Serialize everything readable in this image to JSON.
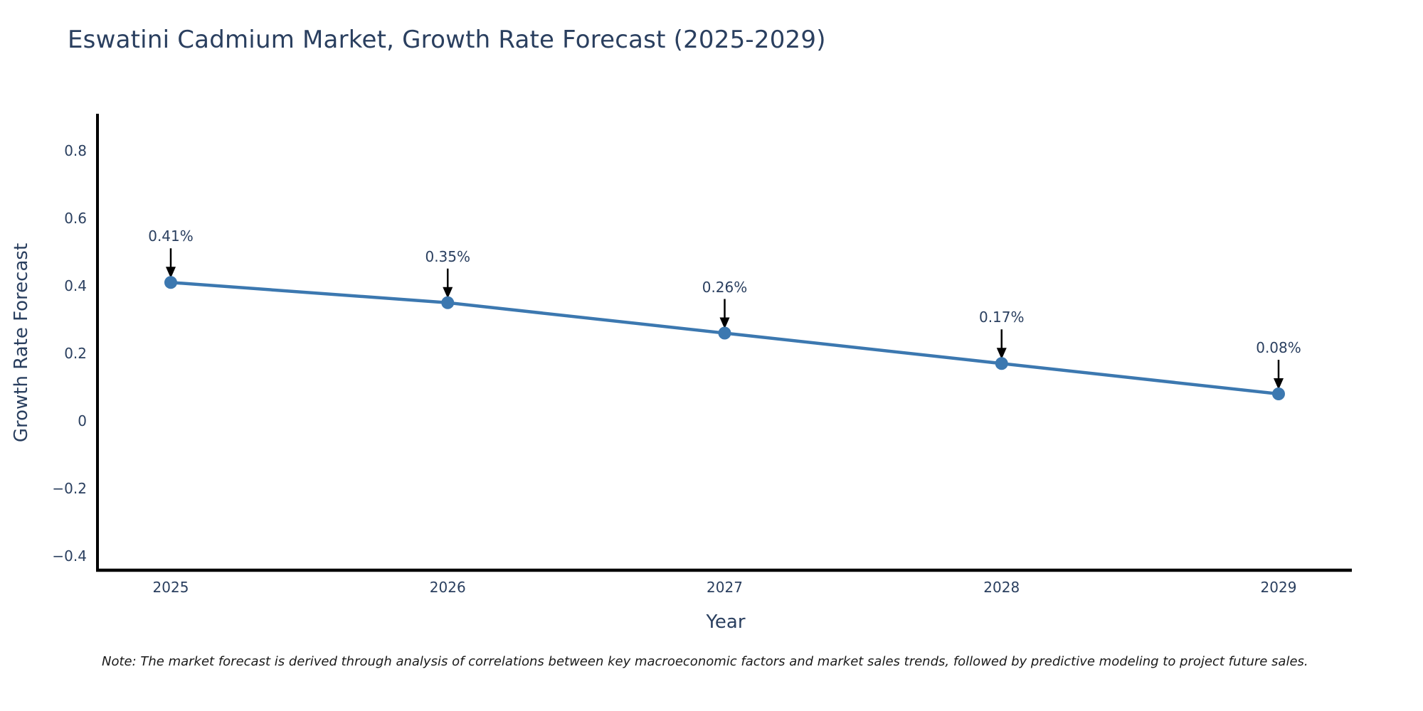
{
  "note": "Note: The market forecast is derived through analysis of correlations between key macroeconomic factors and market sales trends, followed by predictive modeling to project future sales.",
  "chart_data": {
    "type": "line",
    "title": "Eswatini Cadmium Market, Growth Rate Forecast (2025-2029)",
    "xlabel": "Year",
    "ylabel": "Growth Rate Forecast",
    "x": [
      2025,
      2026,
      2027,
      2028,
      2029
    ],
    "xticklabels": [
      "2025",
      "2026",
      "2027",
      "2028",
      "2029"
    ],
    "series": [
      {
        "name": "Growth Rate Forecast",
        "values": [
          0.41,
          0.35,
          0.26,
          0.17,
          0.08
        ],
        "point_labels": [
          "0.41%",
          "0.35%",
          "0.26%",
          "0.17%",
          "0.08%"
        ],
        "color": "#3c78b0"
      }
    ],
    "yticks": [
      0.8,
      0.6,
      0.4,
      0.2,
      0,
      -0.2,
      -0.4
    ],
    "yticklabels": [
      "0.8",
      "0.6",
      "0.4",
      "0.2",
      "0",
      "−0.2",
      "−0.4"
    ],
    "ylim": [
      -0.44,
      0.91
    ],
    "grid": false,
    "legend": "none",
    "marker": "circle",
    "annotation_arrow_color": "#000000",
    "axis_line_color": "#000000",
    "text_color": "#2a3f5f"
  }
}
